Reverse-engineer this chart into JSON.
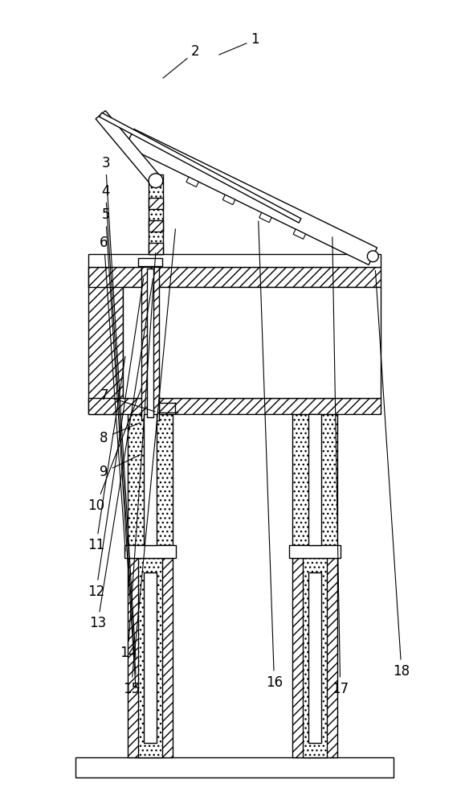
{
  "background_color": "#ffffff",
  "line_color": "#000000",
  "figsize": [
    5.79,
    10.0
  ],
  "dpi": 100,
  "label_fontsize": 12
}
